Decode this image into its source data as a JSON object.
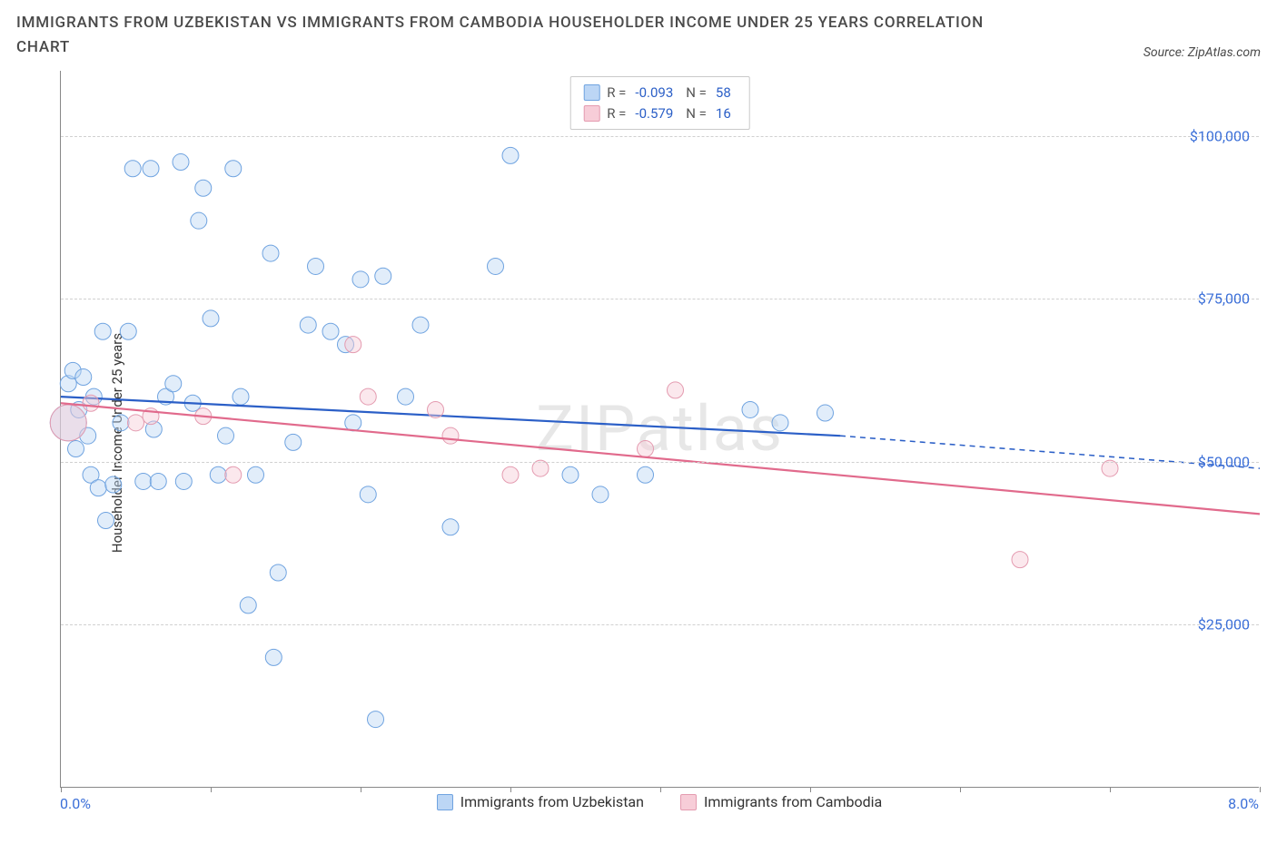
{
  "header": {
    "title": "IMMIGRANTS FROM UZBEKISTAN VS IMMIGRANTS FROM CAMBODIA HOUSEHOLDER INCOME UNDER 25 YEARS CORRELATION CHART",
    "source_prefix": "Source: ",
    "source_name": "ZipAtlas.com"
  },
  "chart": {
    "type": "scatter",
    "watermark": "ZIPatlas",
    "y_label": "Householder Income Under 25 years",
    "background_color": "#ffffff",
    "grid_color": "#d0d0d0",
    "axis_color": "#888888",
    "xlim": [
      0,
      8
    ],
    "ylim": [
      0,
      110000
    ],
    "x_ticks": [
      0,
      1,
      2,
      3,
      4,
      5,
      6,
      7,
      8
    ],
    "x_tick_labels": {
      "0": "0.0%",
      "8": "8.0%"
    },
    "y_gridlines": [
      25000,
      50000,
      75000,
      100000
    ],
    "y_tick_labels": {
      "25000": "$25,000",
      "50000": "$50,000",
      "75000": "$75,000",
      "100000": "$100,000"
    },
    "marker_radius": 9,
    "marker_radius_large": 20,
    "marker_opacity": 0.45,
    "trend_line_width": 2.2,
    "legend_stats": [
      {
        "swatch_fill": "#bcd6f5",
        "swatch_border": "#6fa3e0",
        "r_label": "R =",
        "r": "-0.093",
        "n_label": "N =",
        "n": "58"
      },
      {
        "swatch_fill": "#f7cdd8",
        "swatch_border": "#e49bb0",
        "r_label": "R =",
        "r": "-0.579",
        "n_label": "N =",
        "n": "16"
      }
    ],
    "bottom_legend": [
      {
        "swatch_fill": "#bcd6f5",
        "swatch_border": "#6fa3e0",
        "label": "Immigrants from Uzbekistan"
      },
      {
        "swatch_fill": "#f7cdd8",
        "swatch_border": "#e49bb0",
        "label": "Immigrants from Cambodia"
      }
    ],
    "series": [
      {
        "name": "Immigrants from Uzbekistan",
        "fill": "#bcd6f5",
        "stroke": "#6fa3e0",
        "trend_color": "#2b5fc7",
        "trend": {
          "x1": 0,
          "y1": 60000,
          "x2": 5.2,
          "y2": 54000,
          "x_dash_to": 8,
          "y_dash_to": 49000
        },
        "points": [
          {
            "x": 0.05,
            "y": 62000
          },
          {
            "x": 0.05,
            "y": 56000,
            "r": 20
          },
          {
            "x": 0.08,
            "y": 64000
          },
          {
            "x": 0.1,
            "y": 52000
          },
          {
            "x": 0.12,
            "y": 58000
          },
          {
            "x": 0.15,
            "y": 63000
          },
          {
            "x": 0.18,
            "y": 54000
          },
          {
            "x": 0.2,
            "y": 48000
          },
          {
            "x": 0.22,
            "y": 60000
          },
          {
            "x": 0.25,
            "y": 46000
          },
          {
            "x": 0.28,
            "y": 70000
          },
          {
            "x": 0.3,
            "y": 41000
          },
          {
            "x": 0.35,
            "y": 46500
          },
          {
            "x": 0.4,
            "y": 56000
          },
          {
            "x": 0.45,
            "y": 70000
          },
          {
            "x": 0.48,
            "y": 95000
          },
          {
            "x": 0.55,
            "y": 47000
          },
          {
            "x": 0.6,
            "y": 95000
          },
          {
            "x": 0.62,
            "y": 55000
          },
          {
            "x": 0.65,
            "y": 47000
          },
          {
            "x": 0.7,
            "y": 60000
          },
          {
            "x": 0.75,
            "y": 62000
          },
          {
            "x": 0.8,
            "y": 96000
          },
          {
            "x": 0.82,
            "y": 47000
          },
          {
            "x": 0.88,
            "y": 59000
          },
          {
            "x": 0.92,
            "y": 87000
          },
          {
            "x": 0.95,
            "y": 92000
          },
          {
            "x": 1.0,
            "y": 72000
          },
          {
            "x": 1.05,
            "y": 48000
          },
          {
            "x": 1.1,
            "y": 54000
          },
          {
            "x": 1.15,
            "y": 95000
          },
          {
            "x": 1.2,
            "y": 60000
          },
          {
            "x": 1.25,
            "y": 28000
          },
          {
            "x": 1.3,
            "y": 48000
          },
          {
            "x": 1.4,
            "y": 82000
          },
          {
            "x": 1.42,
            "y": 20000
          },
          {
            "x": 1.45,
            "y": 33000
          },
          {
            "x": 1.55,
            "y": 53000
          },
          {
            "x": 1.65,
            "y": 71000
          },
          {
            "x": 1.7,
            "y": 80000
          },
          {
            "x": 1.8,
            "y": 70000
          },
          {
            "x": 1.9,
            "y": 68000
          },
          {
            "x": 1.95,
            "y": 56000
          },
          {
            "x": 2.0,
            "y": 78000
          },
          {
            "x": 2.05,
            "y": 45000
          },
          {
            "x": 2.1,
            "y": 10500
          },
          {
            "x": 2.15,
            "y": 78500
          },
          {
            "x": 2.3,
            "y": 60000
          },
          {
            "x": 2.4,
            "y": 71000
          },
          {
            "x": 2.6,
            "y": 40000
          },
          {
            "x": 2.9,
            "y": 80000
          },
          {
            "x": 3.0,
            "y": 97000
          },
          {
            "x": 3.4,
            "y": 48000
          },
          {
            "x": 3.6,
            "y": 45000
          },
          {
            "x": 3.9,
            "y": 48000
          },
          {
            "x": 4.6,
            "y": 58000
          },
          {
            "x": 4.8,
            "y": 56000
          },
          {
            "x": 5.1,
            "y": 57500
          }
        ]
      },
      {
        "name": "Immigrants from Cambodia",
        "fill": "#f7cdd8",
        "stroke": "#e49bb0",
        "trend_color": "#e16a8c",
        "trend": {
          "x1": 0,
          "y1": 59000,
          "x2": 8,
          "y2": 42000
        },
        "points": [
          {
            "x": 0.05,
            "y": 56000,
            "r": 20
          },
          {
            "x": 0.2,
            "y": 59000
          },
          {
            "x": 0.5,
            "y": 56000
          },
          {
            "x": 0.6,
            "y": 57000
          },
          {
            "x": 0.95,
            "y": 57000
          },
          {
            "x": 1.15,
            "y": 48000
          },
          {
            "x": 1.95,
            "y": 68000
          },
          {
            "x": 2.05,
            "y": 60000
          },
          {
            "x": 2.5,
            "y": 58000
          },
          {
            "x": 2.6,
            "y": 54000
          },
          {
            "x": 3.0,
            "y": 48000
          },
          {
            "x": 3.2,
            "y": 49000
          },
          {
            "x": 3.9,
            "y": 52000
          },
          {
            "x": 4.1,
            "y": 61000
          },
          {
            "x": 6.4,
            "y": 35000
          },
          {
            "x": 7.0,
            "y": 49000
          }
        ]
      }
    ]
  }
}
